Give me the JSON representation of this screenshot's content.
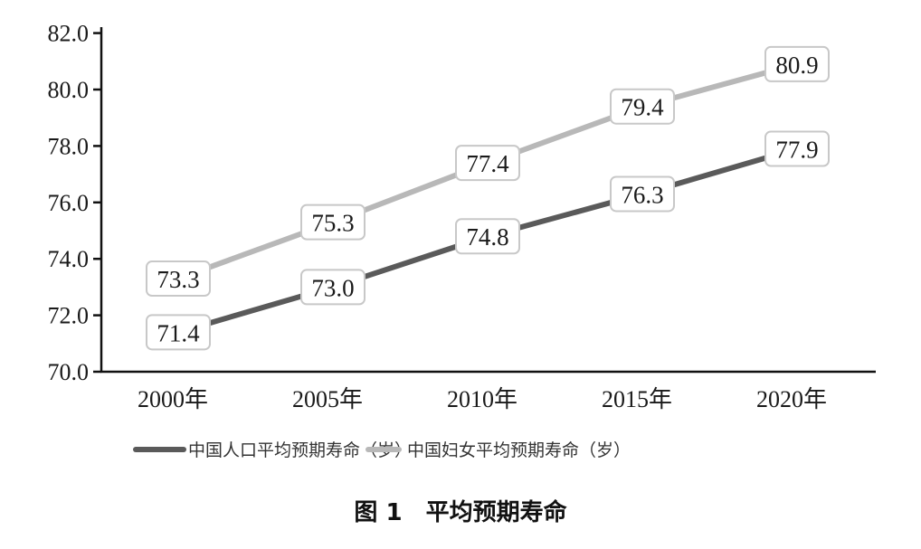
{
  "chart_data": {
    "type": "line",
    "title": "",
    "caption": "图 1　平均预期寿命",
    "xlabel": "",
    "ylabel": "",
    "categories": [
      "2000年",
      "2005年",
      "2010年",
      "2015年",
      "2020年"
    ],
    "ylim": [
      70.0,
      82.0
    ],
    "yticks": [
      "70.0",
      "72.0",
      "74.0",
      "76.0",
      "78.0",
      "80.0",
      "82.0"
    ],
    "grid": false,
    "legend_position": "bottom",
    "series": [
      {
        "name": "中国人口平均预期寿命（岁）",
        "values": [
          71.4,
          73.0,
          74.8,
          76.3,
          77.9
        ],
        "labels": [
          "71.4",
          "73.0",
          "74.8",
          "76.3",
          "77.9"
        ],
        "color": "#5a5a5a"
      },
      {
        "name": "中国妇女平均预期寿命（岁）",
        "values": [
          73.3,
          75.3,
          77.4,
          79.4,
          80.9
        ],
        "labels": [
          "73.3",
          "75.3",
          "77.4",
          "79.4",
          "80.9"
        ],
        "color": "#b8b8b8"
      }
    ]
  }
}
